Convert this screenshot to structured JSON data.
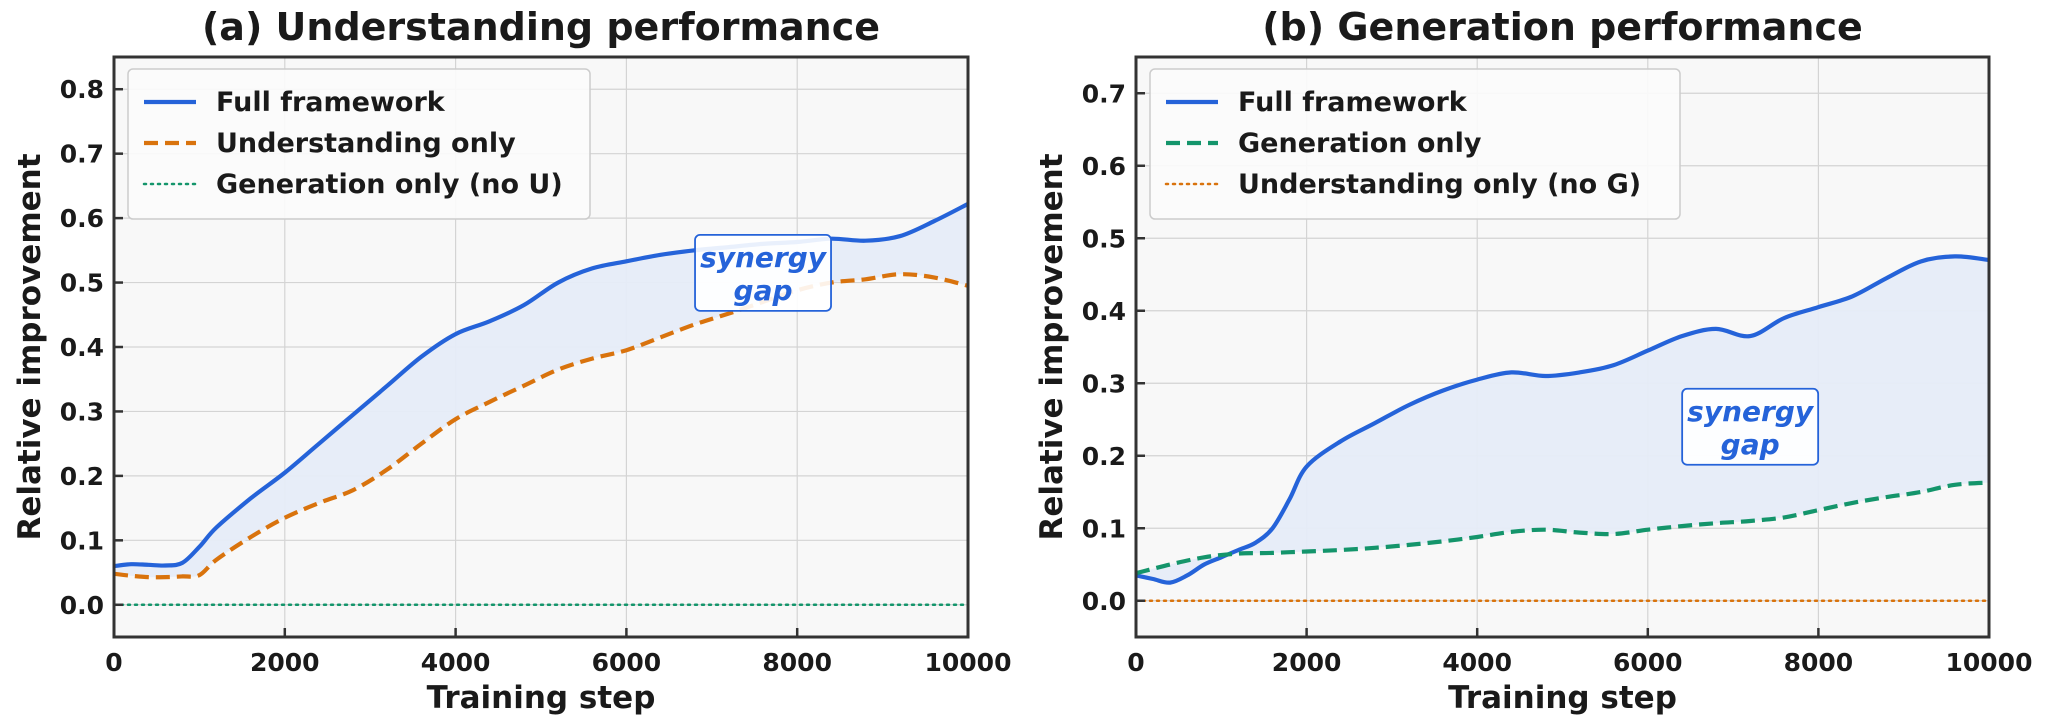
{
  "colors": {
    "full": "#2563d9",
    "understanding": "#d9730d",
    "generation": "#14956b",
    "gap_fill": "#e6ecf8",
    "plot_bg": "#f8f8f8",
    "grid": "#d4d4d4"
  },
  "chart_data": [
    {
      "type": "line",
      "title": "(a) Understanding performance",
      "xlabel": "Training step",
      "ylabel": "Relative improvement",
      "xlim": [
        0,
        10000
      ],
      "ylim": [
        -0.05,
        0.85
      ],
      "xticks": [
        0,
        2000,
        4000,
        6000,
        8000,
        10000
      ],
      "yticks": [
        0.0,
        0.1,
        0.2,
        0.3,
        0.4,
        0.5,
        0.6,
        0.7,
        0.8
      ],
      "grid": true,
      "legend_position": "top-left",
      "annotation": {
        "lines": [
          "synergy",
          "gap"
        ],
        "x": 7600,
        "y": 0.515
      },
      "gap_between": [
        "Full framework",
        "Understanding only"
      ],
      "series": [
        {
          "name": "Full framework",
          "color_key": "full",
          "style": "solid",
          "x": [
            0,
            200,
            400,
            600,
            800,
            1000,
            1200,
            1600,
            2000,
            2400,
            2800,
            3200,
            3600,
            4000,
            4400,
            4800,
            5200,
            5600,
            6000,
            6400,
            6800,
            7200,
            7600,
            8000,
            8400,
            8800,
            9200,
            9600,
            10000
          ],
          "values": [
            0.06,
            0.063,
            0.062,
            0.061,
            0.065,
            0.09,
            0.12,
            0.165,
            0.205,
            0.25,
            0.295,
            0.34,
            0.385,
            0.42,
            0.44,
            0.465,
            0.5,
            0.522,
            0.533,
            0.543,
            0.55,
            0.555,
            0.56,
            0.563,
            0.568,
            0.565,
            0.572,
            0.595,
            0.622
          ]
        },
        {
          "name": "Understanding only",
          "color_key": "understanding",
          "style": "dashed",
          "x": [
            0,
            200,
            400,
            600,
            800,
            1000,
            1200,
            1600,
            2000,
            2400,
            2800,
            3200,
            3600,
            4000,
            4400,
            4800,
            5200,
            5600,
            6000,
            6400,
            6800,
            7200,
            7600,
            8000,
            8400,
            8800,
            9200,
            9600,
            10000
          ],
          "values": [
            0.048,
            0.045,
            0.043,
            0.043,
            0.044,
            0.046,
            0.07,
            0.105,
            0.135,
            0.158,
            0.178,
            0.21,
            0.25,
            0.288,
            0.315,
            0.34,
            0.365,
            0.382,
            0.395,
            0.415,
            0.435,
            0.452,
            0.47,
            0.488,
            0.5,
            0.505,
            0.513,
            0.508,
            0.495
          ]
        },
        {
          "name": "Generation only (no U)",
          "color_key": "generation",
          "style": "dotted",
          "x": [
            0,
            10000
          ],
          "values": [
            0.0,
            0.0
          ]
        }
      ]
    },
    {
      "type": "line",
      "title": "(b) Generation performance",
      "xlabel": "Training step",
      "ylabel": "Relative improvement",
      "xlim": [
        0,
        10000
      ],
      "ylim": [
        -0.05,
        0.75
      ],
      "xticks": [
        0,
        2000,
        4000,
        6000,
        8000,
        10000
      ],
      "yticks": [
        0.0,
        0.1,
        0.2,
        0.3,
        0.4,
        0.5,
        0.6,
        0.7
      ],
      "grid": true,
      "legend_position": "top-left",
      "annotation": {
        "lines": [
          "synergy",
          "gap"
        ],
        "x": 7200,
        "y": 0.24
      },
      "gap_between": [
        "Full framework",
        "Generation only"
      ],
      "series": [
        {
          "name": "Full framework",
          "color_key": "full",
          "style": "solid",
          "x": [
            0,
            200,
            400,
            600,
            800,
            1000,
            1200,
            1400,
            1600,
            1800,
            2000,
            2400,
            2800,
            3200,
            3600,
            4000,
            4400,
            4800,
            5200,
            5600,
            6000,
            6400,
            6800,
            7200,
            7600,
            8000,
            8400,
            8800,
            9200,
            9600,
            10000
          ],
          "values": [
            0.035,
            0.03,
            0.025,
            0.035,
            0.05,
            0.06,
            0.07,
            0.08,
            0.1,
            0.14,
            0.185,
            0.22,
            0.245,
            0.27,
            0.29,
            0.305,
            0.315,
            0.31,
            0.315,
            0.325,
            0.345,
            0.365,
            0.375,
            0.365,
            0.39,
            0.405,
            0.42,
            0.445,
            0.468,
            0.475,
            0.47
          ]
        },
        {
          "name": "Generation only",
          "color_key": "generation",
          "style": "dashed",
          "x": [
            0,
            400,
            800,
            1200,
            1600,
            2000,
            2400,
            2800,
            3200,
            3600,
            4000,
            4400,
            4800,
            5200,
            5600,
            6000,
            6400,
            6800,
            7200,
            7600,
            8000,
            8400,
            8800,
            9200,
            9600,
            10000
          ],
          "values": [
            0.038,
            0.05,
            0.06,
            0.065,
            0.066,
            0.068,
            0.07,
            0.073,
            0.077,
            0.082,
            0.088,
            0.095,
            0.098,
            0.094,
            0.092,
            0.098,
            0.103,
            0.107,
            0.11,
            0.115,
            0.125,
            0.135,
            0.143,
            0.15,
            0.16,
            0.163
          ]
        },
        {
          "name": "Understanding only (no G)",
          "color_key": "understanding",
          "style": "dotted",
          "x": [
            0,
            10000
          ],
          "values": [
            0.0,
            0.0
          ]
        }
      ]
    }
  ]
}
